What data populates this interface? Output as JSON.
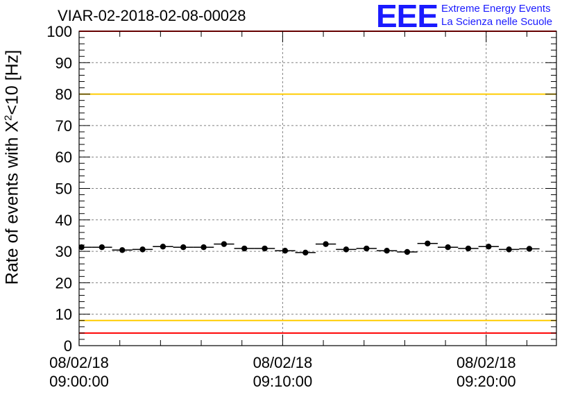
{
  "title": "VIAR-02-2018-02-08-00028",
  "logo": {
    "mark": "EEE",
    "line1": "Extreme Energy Events",
    "line2": "La Scienza nelle Scuole"
  },
  "chart_data": {
    "type": "scatter",
    "title": "VIAR-02-2018-02-08-00028",
    "ylabel": {
      "prefix": "Rate of events with X",
      "sup": "2",
      "suffix": "<10 [Hz]"
    },
    "xlabel": "",
    "ylim": [
      0,
      100
    ],
    "y_ticks": [
      0,
      10,
      20,
      30,
      40,
      50,
      60,
      70,
      80,
      90,
      100
    ],
    "x_range_minutes": [
      0,
      23.45
    ],
    "x_ticks": [
      {
        "minutes": 0,
        "date": "08/02/18",
        "time": "09:00:00"
      },
      {
        "minutes": 10,
        "date": "08/02/18",
        "time": "09:10:00"
      },
      {
        "minutes": 20,
        "date": "08/02/18",
        "time": "09:20:00"
      }
    ],
    "grid": true,
    "reference_lines": [
      {
        "y": 4,
        "color": "#ff0000"
      },
      {
        "y": 8,
        "color": "#ffcc00"
      },
      {
        "y": 80,
        "color": "#ffcc00"
      },
      {
        "y": 100,
        "color": "#ff0000"
      }
    ],
    "bin_width_minutes": 1,
    "series": [
      {
        "x": [
          0.12,
          1.12,
          2.12,
          3.12,
          4.12,
          5.12,
          6.12,
          7.12,
          8.12,
          9.12,
          10.12,
          11.12,
          12.12,
          13.12,
          14.12,
          15.12,
          16.12,
          17.12,
          18.12,
          19.12,
          20.12,
          21.12,
          22.12
        ],
        "y": [
          31.3,
          31.3,
          30.4,
          30.6,
          31.5,
          31.3,
          31.3,
          32.3,
          30.9,
          30.9,
          30.2,
          29.6,
          32.3,
          30.6,
          30.9,
          30.2,
          29.8,
          32.5,
          31.3,
          30.9,
          31.5,
          30.6,
          30.8
        ]
      }
    ]
  },
  "colors": {
    "data": "#000000",
    "grid": "#808080",
    "limit_red": "#ff0000",
    "limit_yellow": "#ffcc00",
    "logo": "#1a1aff"
  }
}
